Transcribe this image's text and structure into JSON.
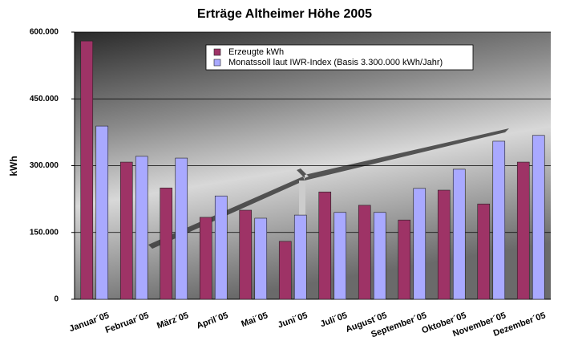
{
  "chart_data": {
    "type": "bar",
    "title": "Erträge Altheimer Höhe 2005",
    "ylabel": "kWh",
    "categories": [
      "Januar´05",
      "Februar´05",
      "März´05",
      "April´05",
      "Mai´05",
      "Juni´05",
      "Juli´05",
      "August´05",
      "September´05",
      "Oktober´05",
      "November´05",
      "Dezember´05"
    ],
    "series": [
      {
        "name": "Erzeugte kWh",
        "color": "#9e3366",
        "values": [
          580000,
          308000,
          250000,
          184000,
          200000,
          130000,
          241000,
          211000,
          178000,
          245000,
          214000,
          308000
        ]
      },
      {
        "name": "Monatssoll laut IWR-Index (Basis 3.300.000 kWh/Jahr)",
        "color": "#a9a9ff",
        "values": [
          389000,
          321000,
          317000,
          232000,
          182000,
          189000,
          195000,
          195000,
          249000,
          292000,
          355000,
          368000
        ]
      }
    ],
    "ylim": [
      0,
      600000
    ],
    "yticks": [
      0,
      {
        "value": 150000,
        "label": "150.000"
      },
      {
        "value": 300000,
        "label": "300.000"
      },
      {
        "value": 450000,
        "label": "450.000"
      },
      {
        "value": 600000,
        "label": "600.000"
      }
    ],
    "grid": true,
    "legend": "top"
  }
}
